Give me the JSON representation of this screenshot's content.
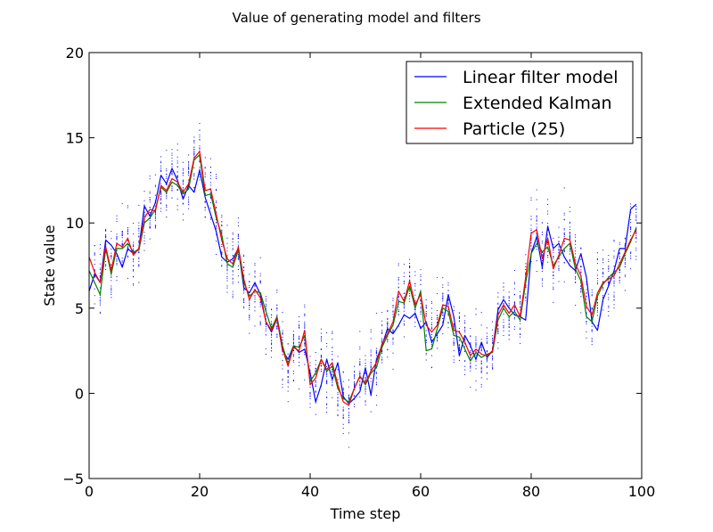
{
  "chart_data": {
    "type": "line",
    "title": "Value of generating model and filters",
    "xlabel": "Time step",
    "ylabel": "State value",
    "xlim": [
      0,
      100
    ],
    "ylim": [
      -5,
      20
    ],
    "xticks": [
      0,
      20,
      40,
      60,
      80,
      100
    ],
    "yticks": [
      -5,
      0,
      5,
      10,
      15,
      20
    ],
    "xtick_labels": [
      "0",
      "20",
      "40",
      "60",
      "80",
      "100"
    ],
    "ytick_labels": [
      "−5",
      "0",
      "5",
      "10",
      "15",
      "20"
    ],
    "grid": false,
    "legend_position": "top-right",
    "particles_per_step": 25,
    "x": [
      0,
      1,
      2,
      3,
      4,
      5,
      6,
      7,
      8,
      9,
      10,
      11,
      12,
      13,
      14,
      15,
      16,
      17,
      18,
      19,
      20,
      21,
      22,
      23,
      24,
      25,
      26,
      27,
      28,
      29,
      30,
      31,
      32,
      33,
      34,
      35,
      36,
      37,
      38,
      39,
      40,
      41,
      42,
      43,
      44,
      45,
      46,
      47,
      48,
      49,
      50,
      51,
      52,
      53,
      54,
      55,
      56,
      57,
      58,
      59,
      60,
      61,
      62,
      63,
      64,
      65,
      66,
      67,
      68,
      69,
      70,
      71,
      72,
      73,
      74,
      75,
      76,
      77,
      78,
      79,
      80,
      81,
      82,
      83,
      84,
      85,
      86,
      87,
      88,
      89,
      90,
      91,
      92,
      93,
      94,
      95,
      96,
      97,
      98,
      99
    ],
    "series": [
      {
        "name": "Linear filter model",
        "color": "#0000ff",
        "values": [
          6.0,
          7.0,
          6.5,
          9.0,
          8.7,
          8.2,
          7.4,
          8.5,
          8.2,
          8.5,
          11.0,
          10.4,
          11.2,
          12.8,
          12.3,
          13.2,
          12.5,
          11.4,
          12.2,
          11.8,
          13.1,
          11.5,
          10.5,
          9.5,
          8.0,
          7.7,
          7.9,
          8.5,
          6.2,
          5.9,
          6.5,
          5.8,
          4.2,
          3.6,
          4.4,
          2.5,
          2.0,
          2.8,
          2.4,
          2.6,
          1.2,
          -0.5,
          0.5,
          2.0,
          0.8,
          1.8,
          -0.2,
          -0.6,
          -0.3,
          0.1,
          1.5,
          -0.1,
          2.0,
          2.8,
          3.8,
          3.5,
          4.0,
          4.6,
          4.4,
          4.7,
          3.8,
          4.2,
          3.0,
          3.5,
          4.0,
          5.8,
          4.5,
          2.2,
          3.4,
          2.8,
          2.0,
          3.0,
          2.1,
          2.5,
          4.9,
          5.5,
          5.0,
          4.6,
          4.5,
          4.3,
          8.2,
          9.2,
          7.4,
          9.8,
          8.5,
          8.8,
          8.0,
          7.5,
          7.2,
          8.2,
          6.8,
          4.2,
          3.7,
          5.5,
          6.3,
          7.2,
          8.5,
          8.5,
          10.8,
          11.1
        ]
      },
      {
        "name": "Extended Kalman",
        "color": "#008000",
        "values": [
          7.2,
          6.5,
          5.8,
          8.5,
          7.0,
          8.5,
          8.5,
          8.8,
          8.3,
          8.4,
          10.0,
          10.3,
          10.8,
          12.1,
          11.8,
          12.4,
          12.2,
          11.7,
          12.0,
          13.7,
          14.0,
          11.6,
          11.7,
          10.3,
          9.3,
          7.6,
          7.4,
          8.4,
          6.5,
          5.7,
          6.0,
          5.9,
          4.8,
          3.8,
          4.5,
          2.8,
          1.7,
          2.8,
          2.7,
          3.4,
          0.7,
          1.2,
          2.0,
          1.3,
          1.6,
          0.3,
          -0.3,
          -0.5,
          0.3,
          1.0,
          0.5,
          1.2,
          1.5,
          2.7,
          3.4,
          4.0,
          5.4,
          5.3,
          6.3,
          5.0,
          6.0,
          2.5,
          2.6,
          3.8,
          5.0,
          4.8,
          3.4,
          3.3,
          2.6,
          1.9,
          2.4,
          2.1,
          2.3,
          2.4,
          4.3,
          5.0,
          4.5,
          4.8,
          4.3,
          6.5,
          8.2,
          8.8,
          8.3,
          8.6,
          7.5,
          8.0,
          8.5,
          8.8,
          7.3,
          6.6,
          4.5,
          4.2,
          5.7,
          6.4,
          6.8,
          7.1,
          7.4,
          8.2,
          8.9,
          9.7
        ]
      },
      {
        "name": "Particle (25)",
        "color": "#ff0000",
        "values": [
          8.0,
          7.1,
          6.5,
          8.6,
          7.2,
          8.8,
          8.6,
          9.1,
          8.1,
          8.5,
          10.3,
          10.8,
          10.7,
          12.2,
          11.9,
          12.6,
          12.4,
          11.8,
          12.3,
          13.8,
          14.2,
          11.9,
          12.0,
          10.5,
          9.0,
          7.9,
          7.6,
          8.6,
          6.7,
          5.5,
          6.1,
          5.6,
          4.2,
          3.7,
          4.4,
          2.6,
          1.6,
          2.7,
          2.5,
          3.7,
          0.5,
          0.9,
          2.0,
          1.4,
          1.8,
          0.5,
          -0.5,
          -0.7,
          0.3,
          1.0,
          0.6,
          1.3,
          1.8,
          2.9,
          3.5,
          4.2,
          6.0,
          5.4,
          6.6,
          5.2,
          5.8,
          4.0,
          3.6,
          4.0,
          5.2,
          5.1,
          3.7,
          3.6,
          3.0,
          2.2,
          2.6,
          2.3,
          2.2,
          2.5,
          4.6,
          5.2,
          4.7,
          5.2,
          4.5,
          6.8,
          9.4,
          9.6,
          7.9,
          9.1,
          7.3,
          8.1,
          9.1,
          9.0,
          7.6,
          6.9,
          5.1,
          4.6,
          5.9,
          6.5,
          6.7,
          6.9,
          7.6,
          8.3,
          9.0,
          9.6
        ]
      }
    ]
  }
}
